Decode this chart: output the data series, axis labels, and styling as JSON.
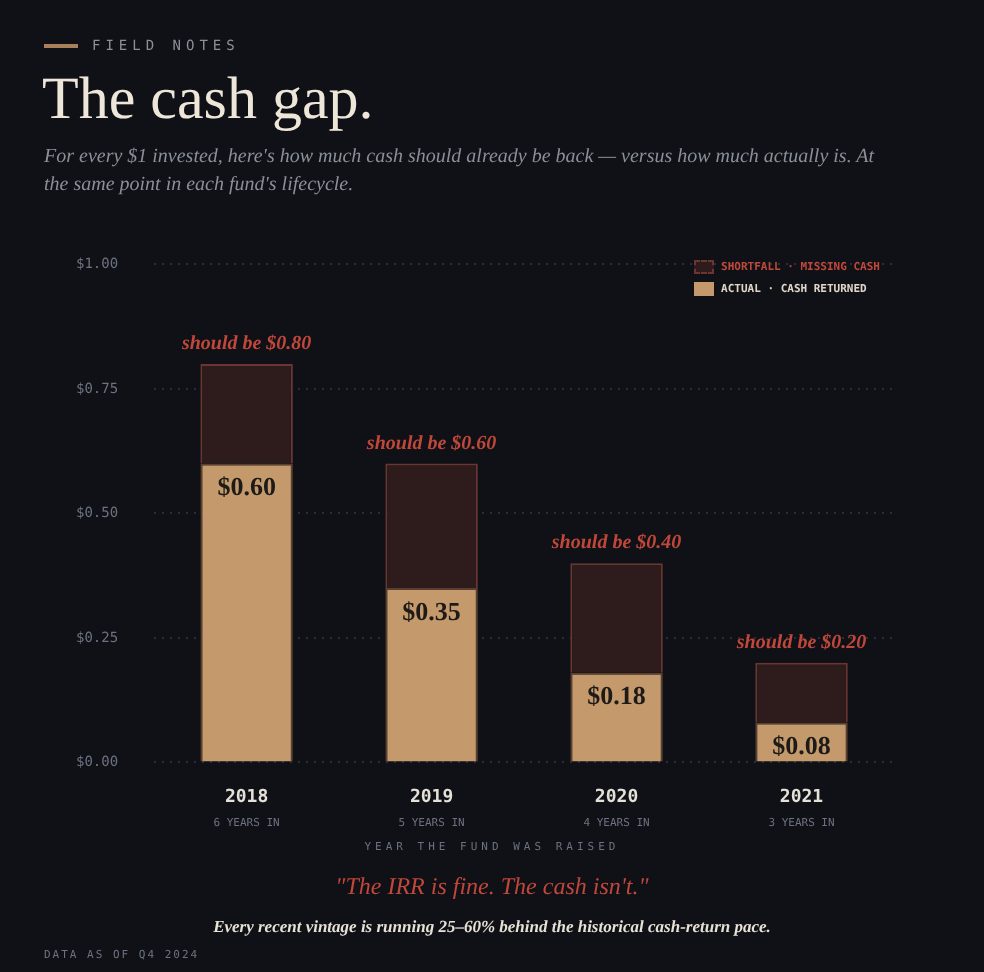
{
  "chart_data": {
    "type": "bar",
    "title": "The cash gap.",
    "subtitle": "For every $1 invested, here's how much cash should already be back — versus how much actually is. At the same point in each fund's lifecycle.",
    "xlabel": "YEAR THE FUND WAS RAISED",
    "categories": [
      "2018",
      "2019",
      "2020",
      "2021"
    ],
    "stacked": true,
    "series": [
      {
        "name": "ACTUAL · CASH RETURNED",
        "color": "#c49a6c",
        "values": [
          0.6,
          0.35,
          0.18,
          0.08
        ],
        "value_labels": [
          "$0.60",
          "$0.35",
          "$0.18",
          "$0.08"
        ]
      },
      {
        "name": "SHORTFALL · MISSING CASH",
        "color": "#2e1b1c",
        "values": [
          0.2,
          0.25,
          0.22,
          0.12
        ]
      }
    ],
    "totals": [
      "should be $0.80",
      "should be $0.60",
      "should be $0.40",
      "should be $0.20"
    ],
    "ylim": [
      0,
      1
    ],
    "yticks": [
      {
        "value": 0,
        "label": "$0.00"
      },
      {
        "value": 0.25,
        "label": "$0.25"
      },
      {
        "value": 0.5,
        "label": "$0.50"
      },
      {
        "value": 0.75,
        "label": "$0.75"
      },
      {
        "value": 1,
        "label": "$1.00"
      }
    ],
    "grid": "y",
    "legend": "top right",
    "annotations": [
      "FIELD NOTES",
      "6 YEARS IN",
      "5 YEARS IN",
      "4 YEARS IN",
      "3 YEARS IN",
      "\"The IRR is fine. The cash isn't.\"",
      "Every recent vintage is running 25–60% behind the historical cash-return pace.",
      "DATA AS OF Q4 2024"
    ]
  }
}
